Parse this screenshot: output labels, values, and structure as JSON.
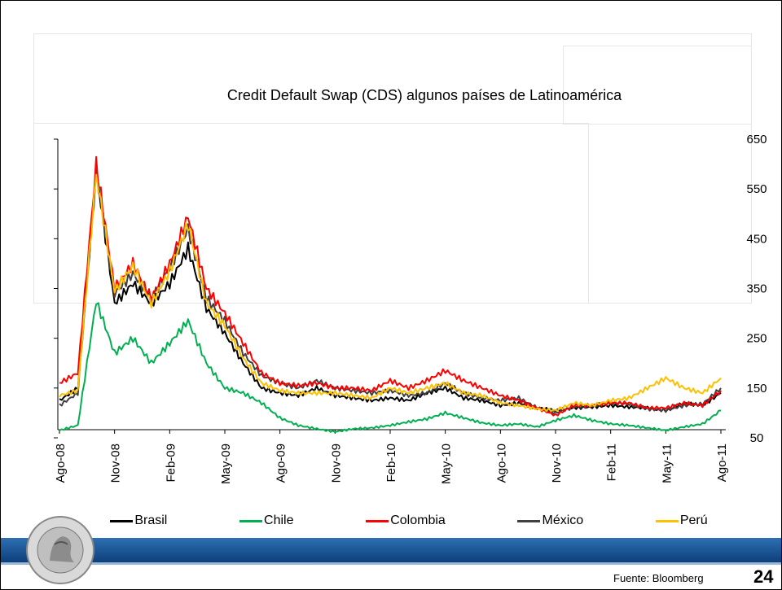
{
  "source": "Fuente: Bloomberg",
  "page_number": "24",
  "colors": {
    "band": "#1a4f8f"
  },
  "chart_data": {
    "type": "line",
    "title": "Credit Default Swap (CDS) algunos países de Latinoamérica",
    "xlabel": "",
    "ylabel": "",
    "x_tick_labels": [
      "Ago-08",
      "Nov-08",
      "Feb-09",
      "May-09",
      "Ago-09",
      "Nov-09",
      "Feb-10",
      "May-10",
      "Ago-10",
      "Nov-10",
      "Feb-11",
      "May-11",
      "Ago-11"
    ],
    "y_ticks": [
      50,
      150,
      250,
      350,
      450,
      550,
      650
    ],
    "ylim": [
      50,
      650
    ],
    "y_axis_position": "right",
    "grid": false,
    "legend": "bottom",
    "months": [
      "Ago-08",
      "Sep-08",
      "Oct-08",
      "Nov-08",
      "Dic-08",
      "Ene-09",
      "Feb-09",
      "Mar-09",
      "Abr-09",
      "May-09",
      "Jun-09",
      "Jul-09",
      "Ago-09",
      "Sep-09",
      "Oct-09",
      "Nov-09",
      "Dic-09",
      "Ene-10",
      "Feb-10",
      "Mar-10",
      "Abr-10",
      "May-10",
      "Jun-10",
      "Jul-10",
      "Ago-10",
      "Sep-10",
      "Oct-10",
      "Nov-10",
      "Dic-10",
      "Ene-11",
      "Feb-11",
      "Mar-11",
      "Abr-11",
      "May-11",
      "Jun-11",
      "Jul-11",
      "Ago-11"
    ],
    "series": [
      {
        "name": "Brasil",
        "color": "#000000",
        "values": [
          125,
          150,
          590,
          320,
          360,
          320,
          360,
          430,
          310,
          260,
          200,
          150,
          140,
          135,
          150,
          135,
          130,
          125,
          130,
          125,
          140,
          150,
          130,
          125,
          115,
          120,
          110,
          105,
          110,
          112,
          115,
          112,
          110,
          105,
          120,
          115,
          140
        ]
      },
      {
        "name": "Chile",
        "color": "#00b050",
        "values": [
          65,
          75,
          325,
          220,
          250,
          200,
          240,
          285,
          200,
          150,
          140,
          120,
          90,
          75,
          68,
          62,
          68,
          70,
          75,
          82,
          88,
          100,
          90,
          80,
          75,
          78,
          72,
          85,
          95,
          85,
          78,
          75,
          70,
          65,
          72,
          78,
          105
        ]
      },
      {
        "name": "Colombia",
        "color": "#ff0000",
        "values": [
          160,
          180,
          600,
          350,
          400,
          330,
          400,
          495,
          350,
          300,
          240,
          180,
          160,
          155,
          160,
          150,
          150,
          145,
          165,
          150,
          165,
          185,
          165,
          150,
          135,
          125,
          110,
          95,
          115,
          115,
          120,
          120,
          110,
          110,
          120,
          115,
          145
        ]
      },
      {
        "name": "México",
        "color": "#404040",
        "values": [
          115,
          140,
          585,
          340,
          380,
          330,
          390,
          470,
          330,
          285,
          220,
          175,
          160,
          150,
          165,
          150,
          145,
          140,
          145,
          135,
          140,
          160,
          140,
          130,
          125,
          130,
          110,
          100,
          112,
          115,
          120,
          118,
          108,
          105,
          115,
          118,
          150
        ]
      },
      {
        "name": "Perú",
        "color": "#ffc000",
        "values": [
          135,
          145,
          580,
          345,
          395,
          320,
          385,
          480,
          320,
          275,
          210,
          160,
          145,
          140,
          140,
          140,
          135,
          130,
          150,
          140,
          150,
          160,
          140,
          135,
          120,
          115,
          108,
          105,
          120,
          115,
          125,
          130,
          150,
          170,
          150,
          140,
          170
        ]
      }
    ]
  }
}
